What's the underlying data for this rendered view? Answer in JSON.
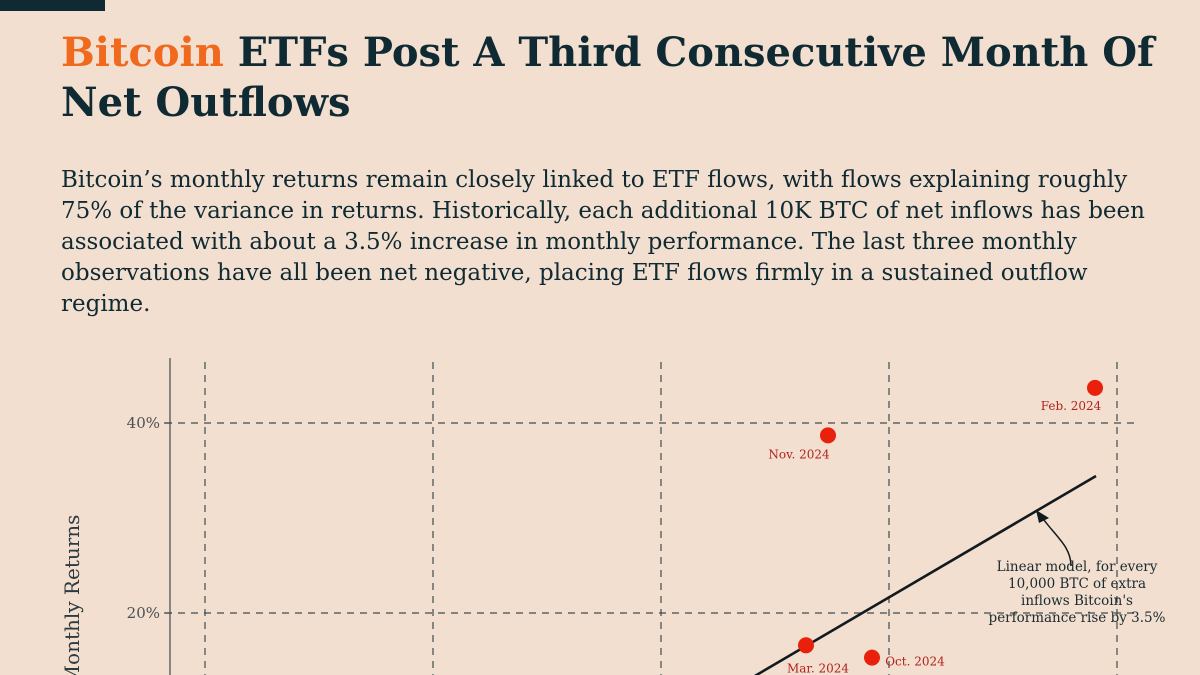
{
  "title": {
    "highlight": "Bitcoin",
    "rest": " ETFs Post A Third Consecutive Month Of Net Outflows"
  },
  "subtitle": "Bitcoin’s monthly returns remain closely linked to ETF flows, with flows explaining roughly 75% of the variance in returns. Historically, each additional 10K BTC of net inflows has been associated with about a 3.5% increase in monthly performance. The last three monthly observations have all been net negative, placing ETF flows firmly in a sustained outflow regime.",
  "colors": {
    "background": "#f2dfcf",
    "text": "#0f2a33",
    "accent": "#f0691d",
    "point": "#e8200c",
    "point_label": "#b3221d",
    "grid": "#3f4a50"
  },
  "chart_data": {
    "type": "scatter",
    "ylabel": "Monthly Returns",
    "ylim": [
      -7,
      46
    ],
    "yticks": [
      {
        "value": 20,
        "label": "20%"
      },
      {
        "value": 40,
        "label": "40%"
      }
    ],
    "grid": true,
    "points": [
      {
        "label": "Feb. 2024",
        "y": 43.7
      },
      {
        "label": "Nov. 2024",
        "y": 38.7
      },
      {
        "label": "Mar. 2024",
        "y": 16.6
      },
      {
        "label": "Oct. 2024",
        "y": 15.3
      }
    ],
    "trendline": {
      "type": "linear",
      "slope_per_10k_btc": 3.5,
      "annotation": [
        "Linear model, for every",
        "10,000 BTC of extra",
        "inflows Bitcoin's",
        "performance rise by 3.5%"
      ]
    }
  }
}
